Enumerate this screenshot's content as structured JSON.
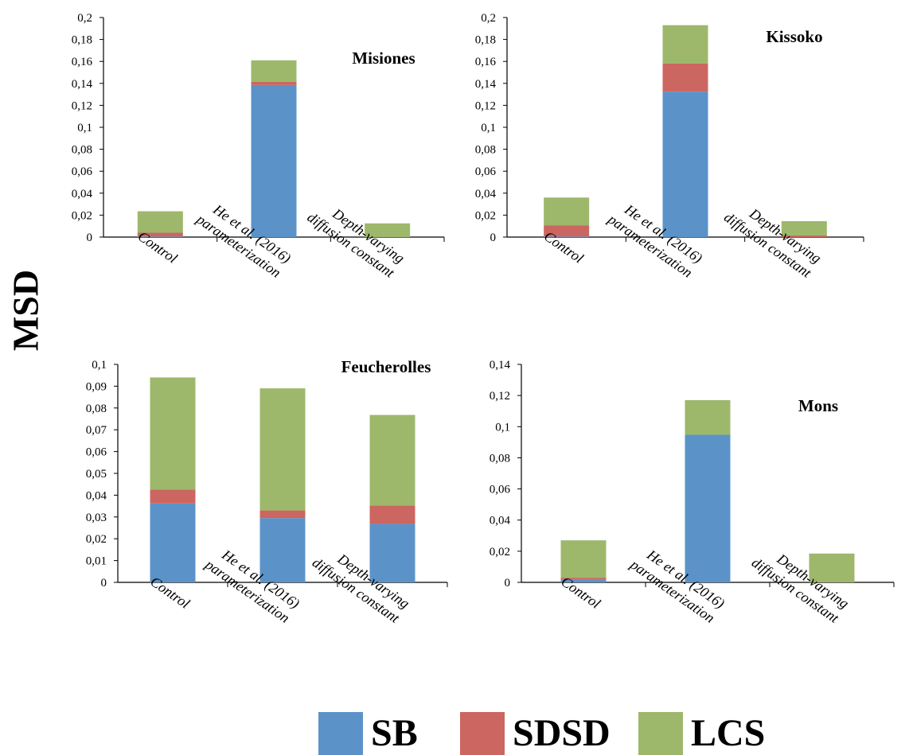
{
  "figure": {
    "ylabel": "MSD",
    "legend": [
      {
        "name": "SB",
        "color": "#5b93c9"
      },
      {
        "name": "SDSD",
        "color": "#cc6660"
      },
      {
        "name": "LCS",
        "color": "#9db86b"
      }
    ]
  },
  "chart_data": [
    {
      "type": "bar",
      "stacked": true,
      "title": "Misiones",
      "categories": [
        "Control",
        "He et al.  (2016)\nparameterization",
        "Depth-varying\ndiffusion constant"
      ],
      "series": [
        {
          "name": "SB",
          "values": [
            0.0005,
            0.1385,
            0.0
          ]
        },
        {
          "name": "SDSD",
          "values": [
            0.0035,
            0.003,
            0.0
          ]
        },
        {
          "name": "LCS",
          "values": [
            0.0195,
            0.0195,
            0.0125
          ]
        }
      ],
      "ylim": [
        0,
        0.2
      ],
      "yticks": [
        "0",
        "0,02",
        "0,04",
        "0,06",
        "0,08",
        "0,1",
        "0,12",
        "0,14",
        "0,16",
        "0,18",
        "0,2"
      ],
      "ytick_values": [
        0,
        0.02,
        0.04,
        0.06,
        0.08,
        0.1,
        0.12,
        0.14,
        0.16,
        0.18,
        0.2
      ]
    },
    {
      "type": "bar",
      "stacked": true,
      "title": "Kissoko",
      "categories": [
        "Control",
        "He et al.  (2016)\nparameterization",
        "Depth-varying\ndiffusion constant"
      ],
      "series": [
        {
          "name": "SB",
          "values": [
            0.0005,
            0.1325,
            0.0
          ]
        },
        {
          "name": "SDSD",
          "values": [
            0.01,
            0.0255,
            0.0015
          ]
        },
        {
          "name": "LCS",
          "values": [
            0.0255,
            0.035,
            0.013
          ]
        }
      ],
      "ylim": [
        0,
        0.2
      ],
      "yticks": [
        "0",
        "0,02",
        "0,04",
        "0,06",
        "0,08",
        "0,1",
        "0,12",
        "0,14",
        "0,16",
        "0,18",
        "0,2"
      ],
      "ytick_values": [
        0,
        0.02,
        0.04,
        0.06,
        0.08,
        0.1,
        0.12,
        0.14,
        0.16,
        0.18,
        0.2
      ]
    },
    {
      "type": "bar",
      "stacked": true,
      "title": "Feucherolles",
      "categories": [
        "Control",
        "He et al.  (2016)\nparameterization",
        "Depth-varying\ndiffusion constant"
      ],
      "series": [
        {
          "name": "SB",
          "values": [
            0.0362,
            0.0295,
            0.0268
          ]
        },
        {
          "name": "SDSD",
          "values": [
            0.0063,
            0.0035,
            0.0085
          ]
        },
        {
          "name": "LCS",
          "values": [
            0.0515,
            0.056,
            0.0415
          ]
        }
      ],
      "ylim": [
        0,
        0.1
      ],
      "yticks": [
        "0",
        "0,01",
        "0,02",
        "0,03",
        "0,04",
        "0,05",
        "0,06",
        "0,07",
        "0,08",
        "0,09",
        "0,1"
      ],
      "ytick_values": [
        0,
        0.01,
        0.02,
        0.03,
        0.04,
        0.05,
        0.06,
        0.07,
        0.08,
        0.09,
        0.1
      ]
    },
    {
      "type": "bar",
      "stacked": true,
      "title": "Mons",
      "categories": [
        "Control",
        "He et al.  (2016)\nparameterization",
        "Depth-varying\ndiffusion constant"
      ],
      "series": [
        {
          "name": "SB",
          "values": [
            0.0017,
            0.0948,
            0.0
          ]
        },
        {
          "name": "SDSD",
          "values": [
            0.0013,
            0.0,
            0.0
          ]
        },
        {
          "name": "LCS",
          "values": [
            0.024,
            0.0222,
            0.0185
          ]
        }
      ],
      "ylim": [
        0,
        0.14
      ],
      "yticks": [
        "0",
        "0,02",
        "0,04",
        "0,06",
        "0,08",
        "0,1",
        "0,12",
        "0,14"
      ],
      "ytick_values": [
        0,
        0.02,
        0.04,
        0.06,
        0.08,
        0.1,
        0.12,
        0.14
      ]
    }
  ]
}
